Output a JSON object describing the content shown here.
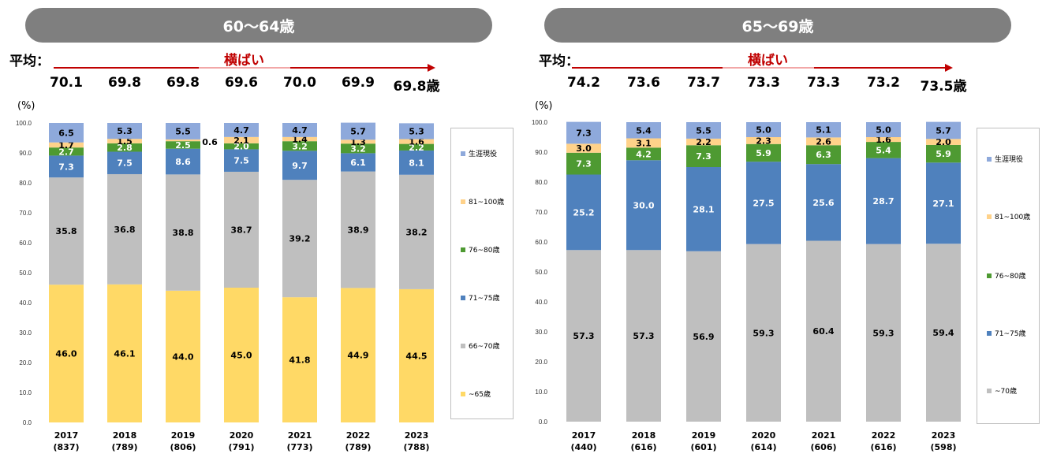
{
  "left": {
    "pill_title": "60〜64歳",
    "avg_label": "平均：",
    "trend_label": "横ばい",
    "averages": [
      "70.1",
      "69.8",
      "69.8",
      "69.6",
      "70.0",
      "69.9",
      "69.8歳"
    ],
    "unit_label": "(%)",
    "legend": [
      "生涯現役",
      "81~100歳",
      "76~80歳",
      "71~75歳",
      "66~70歳",
      "~65歳"
    ],
    "outside_label": "0.6",
    "chart_data": {
      "type": "bar",
      "stacked": true,
      "ylim": [
        0,
        100
      ],
      "yticks": [
        "0.0",
        "10.0",
        "20.0",
        "30.0",
        "40.0",
        "50.0",
        "60.0",
        "70.0",
        "80.0",
        "90.0",
        "100.0"
      ],
      "categories": [
        "2017",
        "2018",
        "2019",
        "2020",
        "2021",
        "2022",
        "2023"
      ],
      "category_counts": [
        "(837)",
        "(789)",
        "(806)",
        "(791)",
        "(773)",
        "(789)",
        "(788)"
      ],
      "series": [
        {
          "name": "~65歳",
          "color": "#ffd966",
          "values": [
            46.0,
            46.1,
            44.0,
            45.0,
            41.8,
            44.9,
            44.5
          ]
        },
        {
          "name": "66~70歳",
          "color": "#bfbfbf",
          "values": [
            35.8,
            36.8,
            38.8,
            38.7,
            39.2,
            38.9,
            38.2
          ]
        },
        {
          "name": "71~75歳",
          "color": "#4f81bd",
          "values": [
            7.3,
            7.5,
            8.6,
            7.5,
            9.7,
            6.1,
            8.1
          ]
        },
        {
          "name": "76~80歳",
          "color": "#4e9a32",
          "values": [
            2.7,
            2.8,
            2.5,
            2.0,
            3.2,
            3.2,
            2.2
          ]
        },
        {
          "name": "81~100歳",
          "color": "#ffd28a",
          "values": [
            1.7,
            1.5,
            0.6,
            2.1,
            1.4,
            1.3,
            1.6
          ]
        },
        {
          "name": "生涯現役",
          "color": "#8ea9db",
          "values": [
            6.5,
            5.3,
            5.5,
            4.7,
            4.7,
            5.7,
            5.3
          ]
        }
      ]
    }
  },
  "right": {
    "pill_title": "65〜69歳",
    "avg_label": "平均：",
    "trend_label": "横ばい",
    "averages": [
      "74.2",
      "73.6",
      "73.7",
      "73.3",
      "73.3",
      "73.2",
      "73.5歳"
    ],
    "unit_label": "(%)",
    "legend": [
      "生涯現役",
      "81~100歳",
      "76~80歳",
      "71~75歳",
      "~70歳"
    ],
    "chart_data": {
      "type": "bar",
      "stacked": true,
      "ylim": [
        0,
        100
      ],
      "yticks": [
        "0.0",
        "10.0",
        "20.0",
        "30.0",
        "40.0",
        "50.0",
        "60.0",
        "70.0",
        "80.0",
        "90.0",
        "100.0"
      ],
      "categories": [
        "2017",
        "2018",
        "2019",
        "2020",
        "2021",
        "2022",
        "2023"
      ],
      "category_counts": [
        "(440)",
        "(616)",
        "(601)",
        "(614)",
        "(606)",
        "(616)",
        "(598)"
      ],
      "series": [
        {
          "name": "~70歳",
          "color": "#bfbfbf",
          "values": [
            57.3,
            57.3,
            56.9,
            59.3,
            60.4,
            59.3,
            59.4
          ]
        },
        {
          "name": "71~75歳",
          "color": "#4f81bd",
          "values": [
            25.2,
            30.0,
            28.1,
            27.5,
            25.6,
            28.7,
            27.1
          ]
        },
        {
          "name": "76~80歳",
          "color": "#4e9a32",
          "values": [
            7.3,
            4.2,
            7.3,
            5.9,
            6.3,
            5.4,
            5.9
          ]
        },
        {
          "name": "81~100歳",
          "color": "#ffd28a",
          "values": [
            3.0,
            3.1,
            2.2,
            2.3,
            2.6,
            1.6,
            2.0
          ]
        },
        {
          "name": "生涯現役",
          "color": "#8ea9db",
          "values": [
            7.3,
            5.4,
            5.5,
            5.0,
            5.1,
            5.0,
            5.7
          ]
        }
      ]
    }
  }
}
